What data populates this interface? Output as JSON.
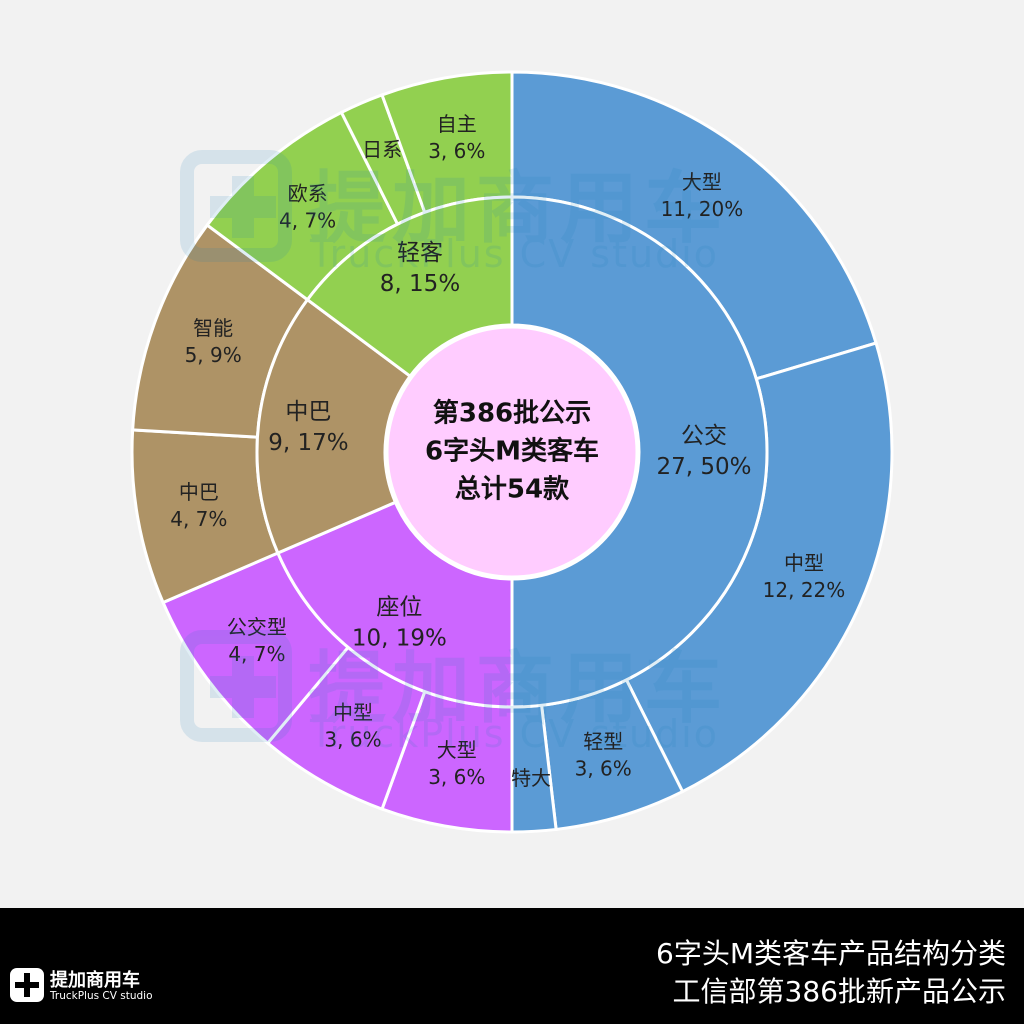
{
  "chart_data": {
    "type": "sunburst",
    "center_label": {
      "lines": [
        "第386批公示",
        "6字头M类客车",
        "总计54款"
      ]
    },
    "inner_ring": [
      {
        "name": "公交",
        "value": 27,
        "percent": "50%",
        "color": "#5b9bd5"
      },
      {
        "name": "座位",
        "value": 10,
        "percent": "19%",
        "color": "#cc66ff"
      },
      {
        "name": "中巴",
        "value": 9,
        "percent": "17%",
        "color": "#ae9366"
      },
      {
        "name": "轻客",
        "value": 8,
        "percent": "15%",
        "color": "#92d050"
      }
    ],
    "outer_ring": [
      {
        "parent": "公交",
        "name": "大型",
        "value": 11,
        "percent": "20%"
      },
      {
        "parent": "公交",
        "name": "中型",
        "value": 12,
        "percent": "22%"
      },
      {
        "parent": "公交",
        "name": "轻型",
        "value": 3,
        "percent": "6%"
      },
      {
        "parent": "公交",
        "name": "特大",
        "value": 1,
        "percent": ""
      },
      {
        "parent": "座位",
        "name": "大型",
        "value": 3,
        "percent": "6%"
      },
      {
        "parent": "座位",
        "name": "中型",
        "value": 3,
        "percent": "6%"
      },
      {
        "parent": "座位",
        "name": "公交型",
        "value": 4,
        "percent": "7%"
      },
      {
        "parent": "中巴",
        "name": "中巴",
        "value": 4,
        "percent": "7%"
      },
      {
        "parent": "中巴",
        "name": "智能",
        "value": 5,
        "percent": "9%"
      },
      {
        "parent": "轻客",
        "name": "欧系",
        "value": 4,
        "percent": "7%"
      },
      {
        "parent": "轻客",
        "name": "日系",
        "value": 1,
        "percent": ""
      },
      {
        "parent": "轻客",
        "name": "自主",
        "value": 3,
        "percent": "6%"
      }
    ],
    "center_color": "#ffccff"
  },
  "watermark": {
    "cn": "提加商用车",
    "en": "TruckPlus CV studio"
  },
  "footer": {
    "line1": "6字头M类客车产品结构分类",
    "line2": "工信部第386批新产品公示",
    "brand_cn": "提加商用车",
    "brand_en": "TruckPlus CV studio"
  }
}
